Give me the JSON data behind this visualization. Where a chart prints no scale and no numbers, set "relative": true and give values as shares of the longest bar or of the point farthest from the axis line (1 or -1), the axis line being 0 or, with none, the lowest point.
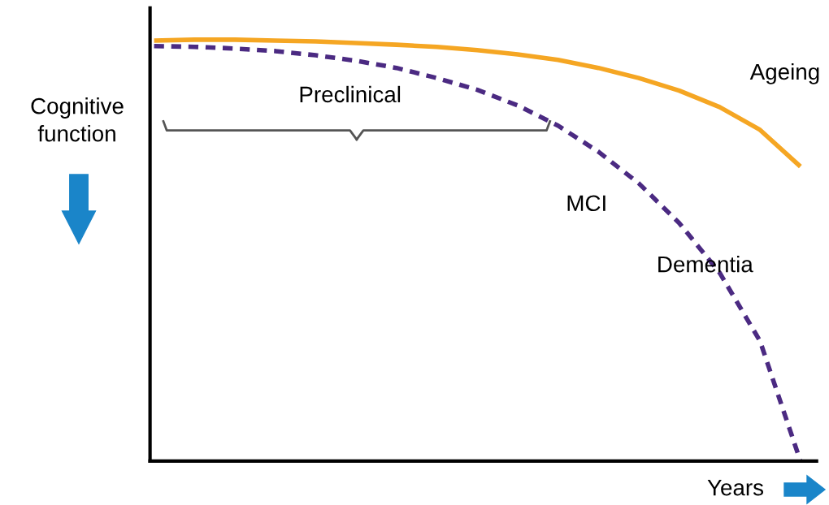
{
  "chart_data": {
    "type": "line",
    "relative": true,
    "xlabel": "Years",
    "ylabel": "Cognitive function",
    "categories": [
      null,
      null,
      null,
      null,
      null,
      null,
      null,
      null,
      null,
      null,
      null,
      null,
      null,
      null,
      null,
      null,
      null
    ],
    "series": [
      {
        "name": "Ageing",
        "color": "#f5a623",
        "line_style": "solid",
        "values": [
          0.998,
          1,
          1,
          0.998,
          0.996,
          0.992,
          0.988,
          0.983,
          0.975,
          0.965,
          0.952,
          0.933,
          0.909,
          0.879,
          0.84,
          0.786,
          0.699
        ]
      },
      {
        "name": "Dementia",
        "color": "#4b2a82",
        "line_style": "dashed",
        "values": [
          0.985,
          0.983,
          0.979,
          0.973,
          0.963,
          0.95,
          0.933,
          0.909,
          0.881,
          0.844,
          0.796,
          0.734,
          0.659,
          0.565,
          0.447,
          0.285,
          0
        ]
      }
    ],
    "annotations": [
      "Preclinical",
      "MCI"
    ],
    "marker": "none",
    "legend": false
  }
}
